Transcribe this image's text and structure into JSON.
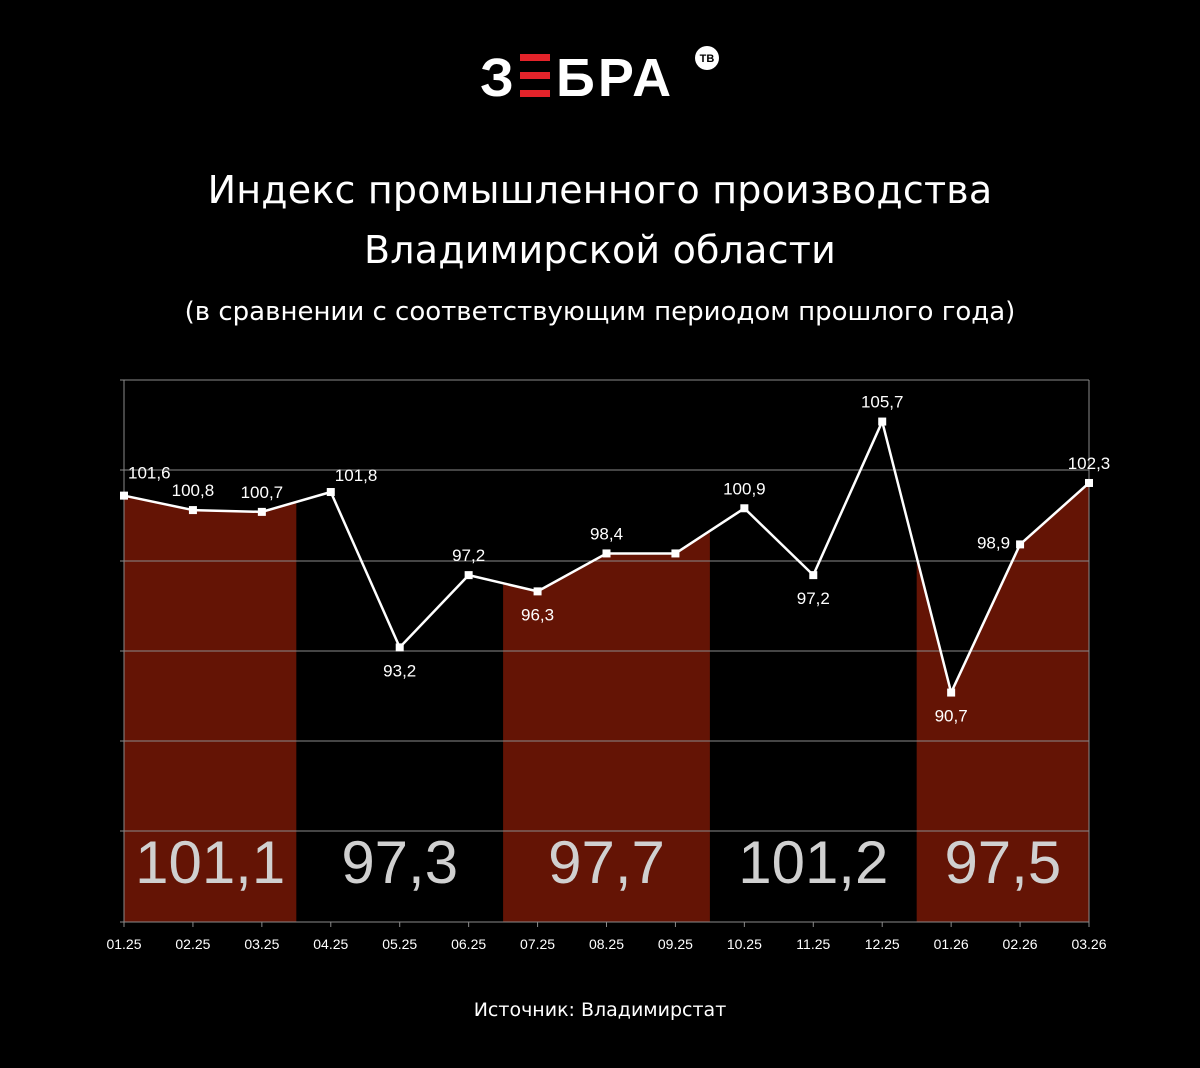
{
  "brand": {
    "name_left": "З",
    "name_mid": "Е",
    "name_right": "БРА",
    "badge": "ТВ",
    "accent": "#e3232a"
  },
  "header": {
    "title_line1": "Индекс промышленного производства",
    "title_line2": "Владимирской области",
    "subtitle": "(в сравнении с соответствующим периодом прошлого года)"
  },
  "source": "Источник: Владимирстат",
  "colors": {
    "background": "#000000",
    "band": "#641405",
    "line": "#ffffff",
    "grid": "#8a8a8a",
    "quarter_text": "#d0d0d0"
  },
  "chart_data": {
    "type": "line",
    "categories": [
      "01.25",
      "02.25",
      "03.25",
      "04.25",
      "05.25",
      "06.25",
      "07.25",
      "08.25",
      "09.25",
      "10.25",
      "11.25",
      "12.25",
      "01.26",
      "02.26",
      "03.26"
    ],
    "values": [
      101.6,
      100.8,
      100.7,
      101.8,
      93.2,
      97.2,
      96.3,
      98.4,
      98.4,
      100.9,
      97.2,
      105.7,
      90.7,
      98.9,
      102.3
    ],
    "point_labels": [
      "101,6",
      "100,8",
      "100,7",
      "101,8",
      "93,2",
      "97,2",
      "96,3",
      "98,4",
      "",
      "100,9",
      "97,2",
      "105,7",
      "90,7",
      "98,9",
      "102,3"
    ],
    "label_side": [
      "above",
      "above",
      "above",
      "above",
      "below",
      "above",
      "below",
      "above",
      "none",
      "above",
      "below",
      "above",
      "below",
      "left",
      "above"
    ],
    "quarters": [
      {
        "value": 101.1,
        "label": "101,1",
        "shaded": true,
        "from": "01.25",
        "to": "03.25"
      },
      {
        "value": 97.3,
        "label": "97,3",
        "shaded": false,
        "from": "04.25",
        "to": "06.25"
      },
      {
        "value": 97.7,
        "label": "97,7",
        "shaded": true,
        "from": "07.25",
        "to": "09.25"
      },
      {
        "value": 101.2,
        "label": "101,2",
        "shaded": false,
        "from": "10.25",
        "to": "12.25"
      },
      {
        "value": 97.5,
        "label": "97,5",
        "shaded": true,
        "from": "01.26",
        "to": "03.26"
      }
    ],
    "ylim": [
      78,
      108
    ],
    "grid": true,
    "xlabel": "",
    "ylabel": ""
  }
}
